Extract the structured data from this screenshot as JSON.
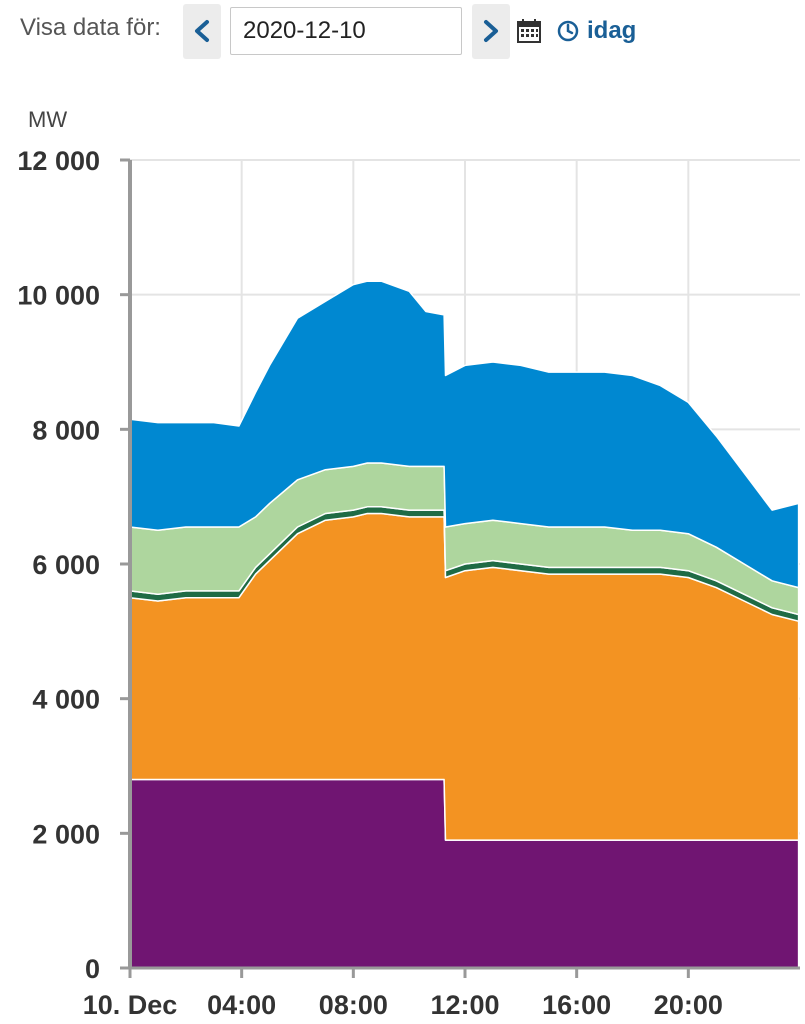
{
  "controls": {
    "label": "Visa data för:",
    "date_value": "2020-12-10",
    "today_label": "idag",
    "prev_icon": "chevron-left-icon",
    "next_icon": "chevron-right-icon",
    "calendar_icon": "calendar-icon",
    "today_icon": "clock-icon",
    "accent_color": "#1a5f96"
  },
  "chart_data": {
    "type": "area",
    "stacked": true,
    "ylabel": "MW",
    "ylim": [
      0,
      12000
    ],
    "yticks": [
      0,
      2000,
      4000,
      6000,
      8000,
      10000,
      12000
    ],
    "ytick_labels": [
      "0",
      "2 000",
      "4 000",
      "6 000",
      "8 000",
      "10 000",
      "12 000"
    ],
    "xlim": [
      0,
      24
    ],
    "xticks": [
      0,
      4,
      8,
      12,
      16,
      20
    ],
    "xtick_labels": [
      "10. Dec",
      "04:00",
      "08:00",
      "12:00",
      "16:00",
      "20:00"
    ],
    "grid": true,
    "x": [
      0,
      1,
      2,
      3,
      3.9,
      4.5,
      5,
      6,
      7,
      8,
      8.5,
      9,
      10,
      10.6,
      11.25,
      11.3,
      12,
      13,
      14,
      15,
      16,
      17,
      18,
      19,
      20,
      21,
      22,
      23,
      23.95
    ],
    "series": [
      {
        "color": "#701572",
        "values": [
          2800,
          2800,
          2800,
          2800,
          2800,
          2800,
          2800,
          2800,
          2800,
          2800,
          2800,
          2800,
          2800,
          2800,
          2800,
          1900,
          1900,
          1900,
          1900,
          1900,
          1900,
          1900,
          1900,
          1900,
          1900,
          1900,
          1900,
          1900,
          1900
        ]
      },
      {
        "color": "#f39322",
        "values": [
          2700,
          2650,
          2700,
          2700,
          2700,
          3050,
          3250,
          3650,
          3850,
          3900,
          3950,
          3950,
          3900,
          3900,
          3900,
          3900,
          4000,
          4050,
          4000,
          3950,
          3950,
          3950,
          3950,
          3950,
          3900,
          3750,
          3550,
          3350,
          3250
        ]
      },
      {
        "color": "#1f6b45",
        "values": [
          100,
          100,
          100,
          100,
          100,
          100,
          100,
          100,
          100,
          100,
          100,
          100,
          100,
          100,
          100,
          100,
          100,
          100,
          100,
          100,
          100,
          100,
          100,
          100,
          100,
          100,
          100,
          100,
          100
        ]
      },
      {
        "color": "#aed69e",
        "values": [
          950,
          950,
          950,
          950,
          950,
          750,
          750,
          700,
          650,
          650,
          650,
          650,
          650,
          650,
          650,
          650,
          600,
          600,
          600,
          600,
          600,
          600,
          550,
          550,
          550,
          500,
          450,
          400,
          400
        ]
      },
      {
        "color": "#0088d1",
        "values": [
          1600,
          1600,
          1550,
          1550,
          1500,
          1850,
          2050,
          2400,
          2500,
          2700,
          2700,
          2700,
          2600,
          2300,
          2250,
          2250,
          2350,
          2350,
          2350,
          2300,
          2300,
          2300,
          2300,
          2150,
          1950,
          1650,
          1350,
          1050,
          1250
        ]
      }
    ]
  }
}
